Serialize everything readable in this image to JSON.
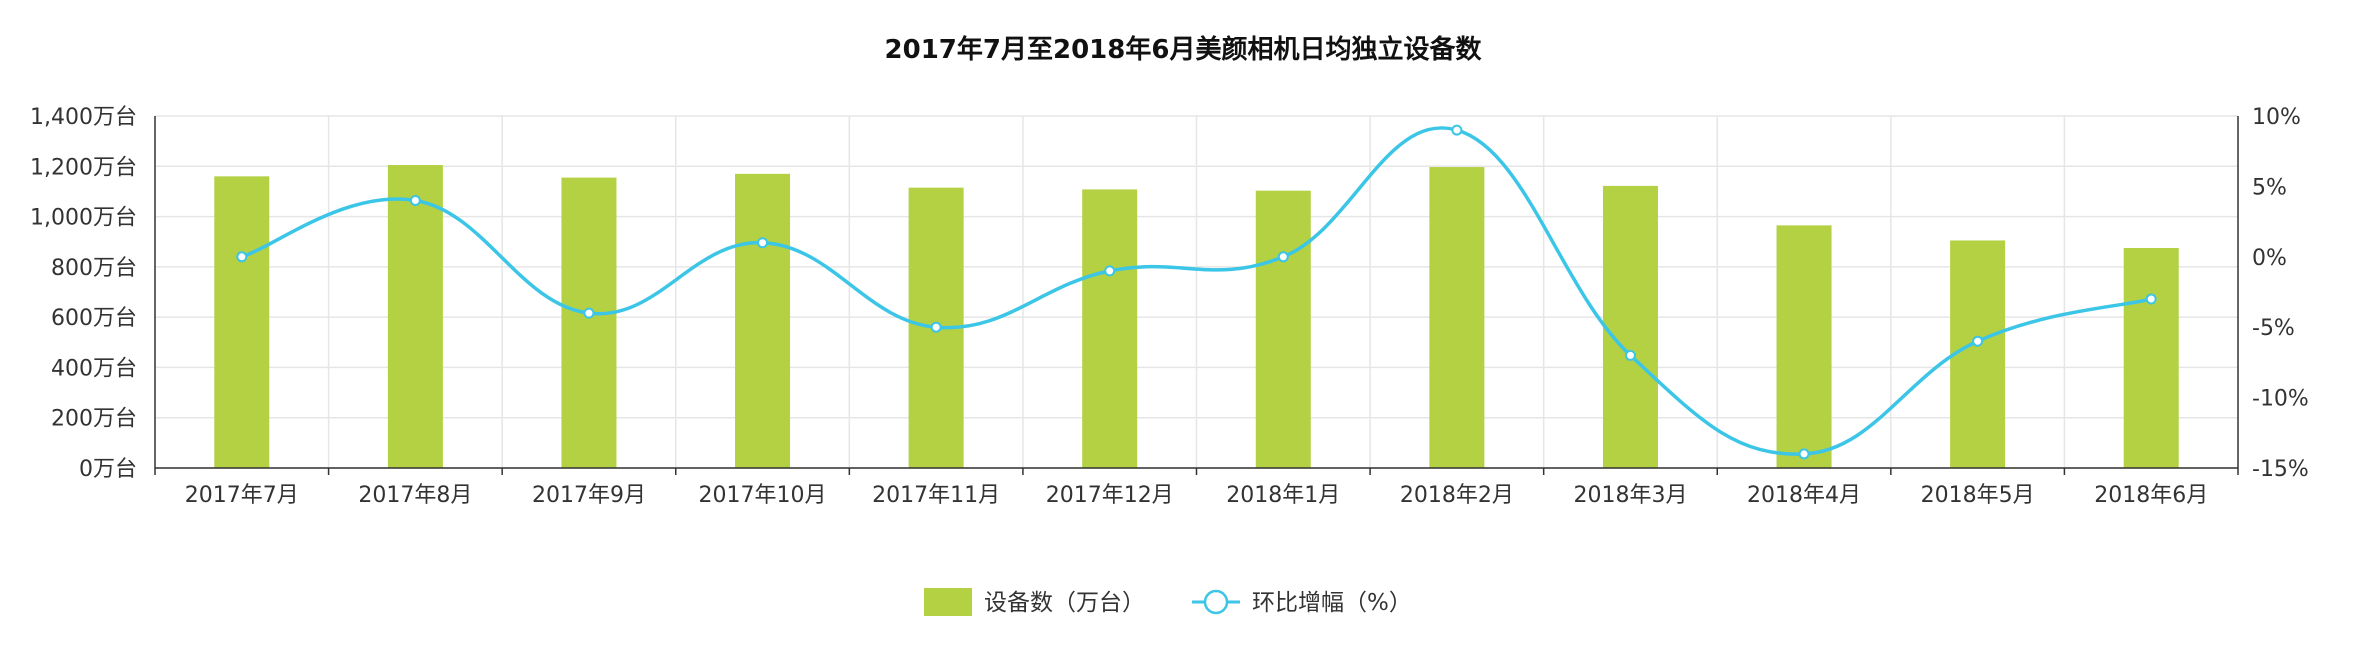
{
  "chart_data": {
    "type": "bar",
    "title": "2017年7月至2018年6月美颜相机日均独立设备数",
    "categories": [
      "2017年7月",
      "2017年8月",
      "2017年9月",
      "2017年10月",
      "2017年11月",
      "2017年12月",
      "2018年1月",
      "2018年2月",
      "2018年3月",
      "2018年4月",
      "2018年5月",
      "2018年6月"
    ],
    "series": [
      {
        "name": "设备数（万台）",
        "type": "bar",
        "axis": "left",
        "color": "#b3d143",
        "values": [
          1160,
          1205,
          1155,
          1170,
          1115,
          1108,
          1103,
          1197,
          1122,
          965,
          905,
          875
        ]
      },
      {
        "name": "环比增幅（%）",
        "type": "line",
        "axis": "right",
        "color": "#3bc5e6",
        "values": [
          0,
          4,
          -4,
          1,
          -5,
          -1,
          0,
          9,
          -7,
          -14,
          -6,
          -3
        ]
      }
    ],
    "y_left": {
      "ticks": [
        "0万台",
        "200万台",
        "400万台",
        "600万台",
        "800万台",
        "1,000万台",
        "1,200万台",
        "1,400万台"
      ],
      "range": [
        0,
        1400
      ]
    },
    "y_right": {
      "ticks": [
        "-15%",
        "-10%",
        "-5%",
        "0%",
        "5%",
        "10%"
      ],
      "range": [
        -15,
        10
      ]
    },
    "grid": true,
    "legend_position": "bottom-center"
  }
}
